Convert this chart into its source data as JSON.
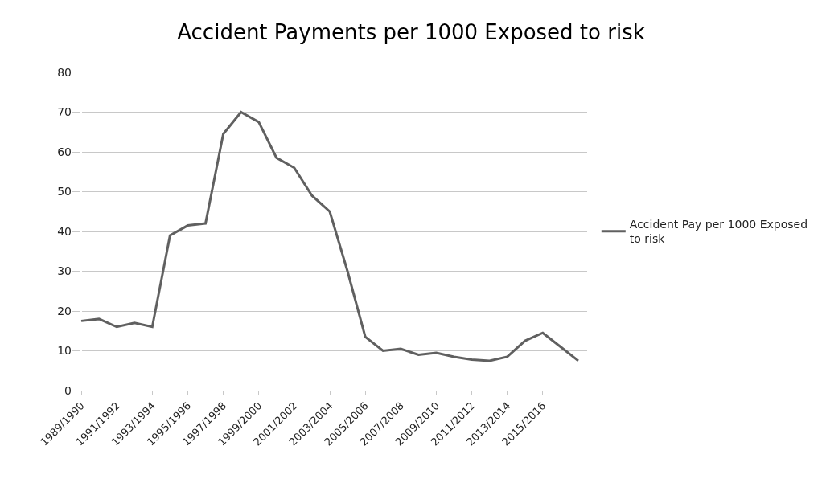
{
  "chart_data": {
    "type": "line",
    "title": "Accident Payments per 1000 Exposed to risk",
    "categories": [
      "1989/1990",
      null,
      "1991/1992",
      null,
      "1993/1994",
      null,
      "1995/1996",
      null,
      "1997/1998",
      null,
      "1999/2000",
      null,
      "2001/2002",
      null,
      "2003/2004",
      null,
      "2005/2006",
      null,
      "2007/2008",
      null,
      "2009/2010",
      null,
      "2011/2012",
      null,
      "2013/2014",
      null,
      "2015/2016",
      null,
      null
    ],
    "series": [
      {
        "name": "Accident Pay per 1000 Exposed to risk",
        "color": "#606060",
        "values": [
          17.5,
          18,
          16,
          17,
          16,
          39,
          41.5,
          42,
          64.5,
          70,
          67.5,
          58.5,
          56,
          49,
          45,
          30,
          13.5,
          10,
          10.5,
          9,
          9.5,
          8.5,
          7.8,
          7.5,
          8.5,
          12.5,
          14.5,
          11,
          7.5
        ]
      }
    ],
    "ylim": [
      0,
      80
    ],
    "yticks": [
      0,
      10,
      20,
      30,
      40,
      50,
      60,
      70,
      80
    ],
    "grid": "y",
    "legend": "right",
    "marker": "none",
    "line_style": "solid"
  }
}
